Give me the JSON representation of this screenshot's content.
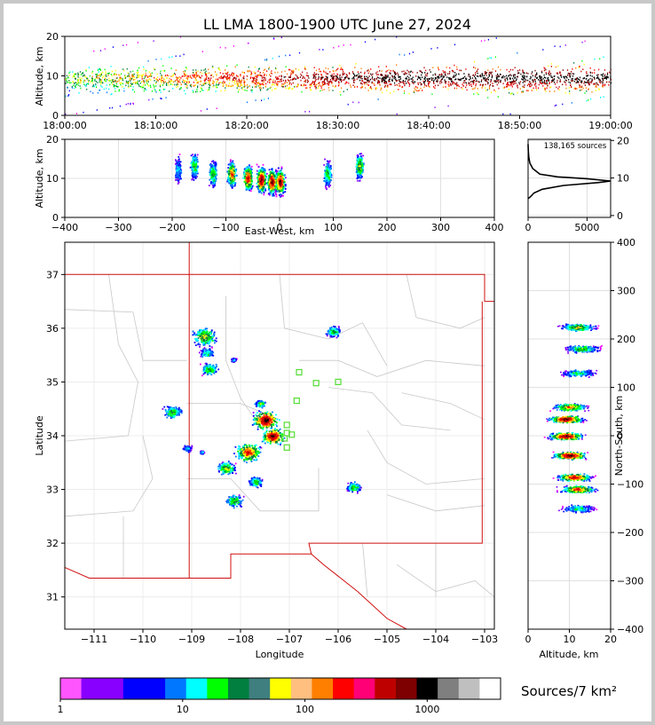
{
  "chart_data": {
    "type": "lightning-mapping-array",
    "title": "LL LMA 1800-1900 UTC June 27, 2024",
    "source_count_label": "138,165 sources",
    "panels": {
      "time_height": {
        "ylabel": "Altitude, km",
        "ylim": [
          0,
          20
        ],
        "yticks": [
          "0",
          "10",
          "20"
        ],
        "xticks": [
          "18:00:00",
          "18:10:00",
          "18:20:00",
          "18:30:00",
          "18:40:00",
          "18:50:00",
          "19:00:00"
        ]
      },
      "ew_height": {
        "xlabel": "East-West, km",
        "ylabel": "Altitude, km",
        "xlim": [
          -400,
          400
        ],
        "ylim": [
          0,
          20
        ],
        "xticks": [
          "−400",
          "−300",
          "−200",
          "−100",
          "0",
          "100",
          "200",
          "300",
          "400"
        ],
        "yticks": [
          "0",
          "10",
          "20"
        ],
        "clusters": [
          {
            "x": -190,
            "alt": 12,
            "density": 0.3
          },
          {
            "x": -160,
            "alt": 13,
            "density": 0.5
          },
          {
            "x": -125,
            "alt": 11,
            "density": 0.5
          },
          {
            "x": -90,
            "alt": 11,
            "density": 0.8
          },
          {
            "x": -60,
            "alt": 10,
            "density": 0.9
          },
          {
            "x": -35,
            "alt": 9.5,
            "density": 1.0
          },
          {
            "x": -15,
            "alt": 9,
            "density": 1.0
          },
          {
            "x": 0,
            "alt": 9,
            "density": 1.0
          },
          {
            "x": 88,
            "alt": 11,
            "density": 0.5
          },
          {
            "x": 148,
            "alt": 13,
            "density": 0.6
          }
        ]
      },
      "alt_histogram": {
        "xlim": [
          0,
          7000
        ],
        "xticks": [
          "0",
          "5000"
        ],
        "ylim": [
          0,
          20
        ],
        "yticks": [
          "0",
          "10",
          "20"
        ],
        "profile": [
          [
            0,
            4.5
          ],
          [
            200,
            5
          ],
          [
            500,
            6
          ],
          [
            1200,
            7
          ],
          [
            3000,
            8
          ],
          [
            6000,
            8.8
          ],
          [
            7000,
            9.2
          ],
          [
            5000,
            9.8
          ],
          [
            2500,
            10.3
          ],
          [
            1000,
            11
          ],
          [
            400,
            12.5
          ],
          [
            150,
            14
          ],
          [
            60,
            15.5
          ],
          [
            20,
            17
          ],
          [
            0,
            19
          ]
        ]
      },
      "plan_map": {
        "xlabel": "Longitude",
        "ylabel": "Latitude",
        "xlim": [
          -111.6,
          -102.8
        ],
        "ylim": [
          30.4,
          37.6
        ],
        "xticks": [
          "−111",
          "−110",
          "−109",
          "−108",
          "−107",
          "−106",
          "−105",
          "−104",
          "−103"
        ],
        "yticks": [
          "31",
          "32",
          "33",
          "34",
          "35",
          "36",
          "37"
        ],
        "stations": [
          [
            -106.8,
            35.18
          ],
          [
            -106.45,
            34.98
          ],
          [
            -106.0,
            35.0
          ],
          [
            -106.85,
            34.65
          ],
          [
            -107.05,
            34.2
          ],
          [
            -107.05,
            34.05
          ],
          [
            -106.95,
            34.02
          ],
          [
            -107.1,
            33.95
          ],
          [
            -107.05,
            33.78
          ]
        ],
        "clusters": [
          {
            "lon": -108.75,
            "lat": 35.85,
            "r": 0.35,
            "density": 0.6
          },
          {
            "lon": -108.65,
            "lat": 35.25,
            "r": 0.25,
            "density": 0.5
          },
          {
            "lon": -108.7,
            "lat": 35.55,
            "r": 0.2,
            "density": 0.4
          },
          {
            "lon": -109.4,
            "lat": 34.45,
            "r": 0.25,
            "density": 0.5
          },
          {
            "lon": -107.5,
            "lat": 34.3,
            "r": 0.35,
            "density": 1.0
          },
          {
            "lon": -107.35,
            "lat": 34.0,
            "r": 0.3,
            "density": 1.0
          },
          {
            "lon": -107.85,
            "lat": 33.7,
            "r": 0.35,
            "density": 0.8
          },
          {
            "lon": -108.3,
            "lat": 33.4,
            "r": 0.25,
            "density": 0.6
          },
          {
            "lon": -107.7,
            "lat": 33.15,
            "r": 0.2,
            "density": 0.5
          },
          {
            "lon": -108.15,
            "lat": 32.8,
            "r": 0.25,
            "density": 0.5
          },
          {
            "lon": -105.7,
            "lat": 33.05,
            "r": 0.2,
            "density": 0.5
          },
          {
            "lon": -106.1,
            "lat": 35.95,
            "r": 0.2,
            "density": 0.5
          },
          {
            "lon": -108.15,
            "lat": 35.42,
            "r": 0.08,
            "density": 0.3
          },
          {
            "lon": -108.8,
            "lat": 33.7,
            "r": 0.06,
            "density": 0.3
          },
          {
            "lon": -109.1,
            "lat": 33.77,
            "r": 0.12,
            "density": 0.3
          },
          {
            "lon": -107.6,
            "lat": 34.6,
            "r": 0.15,
            "density": 0.5
          }
        ]
      },
      "ns_height": {
        "xlabel": "Altitude, km",
        "ylabel": "North-South, km",
        "xlim": [
          0,
          20
        ],
        "ylim": [
          -400,
          400
        ],
        "xticks": [
          "0",
          "10",
          "20"
        ],
        "yticks": [
          "−400",
          "−300",
          "−200",
          "−100",
          "0",
          "100",
          "200",
          "300",
          "400"
        ],
        "clusters": [
          {
            "y": 225,
            "alt": 12,
            "density": 0.6
          },
          {
            "y": 180,
            "alt": 13,
            "density": 0.5
          },
          {
            "y": 130,
            "alt": 12,
            "density": 0.4
          },
          {
            "y": 60,
            "alt": 10,
            "density": 0.7
          },
          {
            "y": 35,
            "alt": 9,
            "density": 1.0
          },
          {
            "y": 0,
            "alt": 9,
            "density": 1.0
          },
          {
            "y": -40,
            "alt": 10,
            "density": 1.0
          },
          {
            "y": -85,
            "alt": 11,
            "density": 0.9
          },
          {
            "y": -110,
            "alt": 12,
            "density": 0.8
          },
          {
            "y": -150,
            "alt": 12,
            "density": 0.4
          }
        ]
      }
    },
    "colorbar": {
      "label": "Sources/7 km²",
      "scale": "log",
      "tick_labels": [
        "1",
        "10",
        "100",
        "1000"
      ],
      "colors": [
        "#ff55ff",
        "#8800ff",
        "#8800ff",
        "#0000ff",
        "#0000ff",
        "#0077ff",
        "#00ffff",
        "#00ff00",
        "#007f3f",
        "#3f7f7f",
        "#ffff00",
        "#ffbf7f",
        "#ff7f00",
        "#ff0000",
        "#ff0077",
        "#bf0000",
        "#7f0000",
        "#000000",
        "#7f7f7f",
        "#bfbfbf",
        "#ffffff"
      ]
    }
  }
}
